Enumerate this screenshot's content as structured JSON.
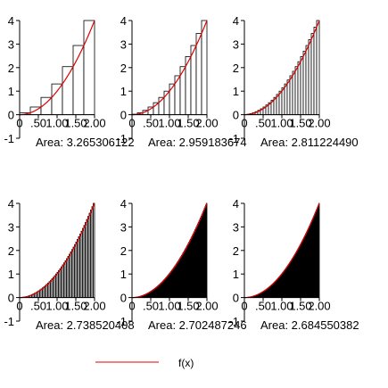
{
  "chart_data": {
    "type": "bar",
    "function": "x^2",
    "domain": [
      0,
      2
    ],
    "xlim": [
      0,
      2
    ],
    "ylim": [
      -1,
      4
    ],
    "x_ticks": [
      0,
      0.5,
      1,
      1.5,
      2
    ],
    "x_tick_labels": [
      "0",
      ".50",
      "1.00",
      "1.50",
      "2.00"
    ],
    "y_ticks": [
      -1,
      0,
      1,
      2,
      3,
      4
    ],
    "y_tick_labels": [
      "-1",
      "0",
      "1",
      "2",
      "3",
      "4"
    ],
    "curve_color": "#e00000",
    "bar_fill": "#ffffff",
    "bar_edge": "#000000",
    "legend": {
      "label": "f(x)",
      "placement": "bottom-center"
    },
    "grid": false,
    "panels": [
      {
        "n": 7,
        "area_label": "Area:  3.265306122"
      },
      {
        "n": 14,
        "area_label": "Area:  2.959183674"
      },
      {
        "n": 28,
        "area_label": "Area:  2.811224490"
      },
      {
        "n": 56,
        "area_label": "Area:  2.738520408"
      },
      {
        "n": 112,
        "area_label": "Area:  2.702487246"
      },
      {
        "n": 224,
        "area_label": "Area:  2.684550382"
      }
    ]
  }
}
